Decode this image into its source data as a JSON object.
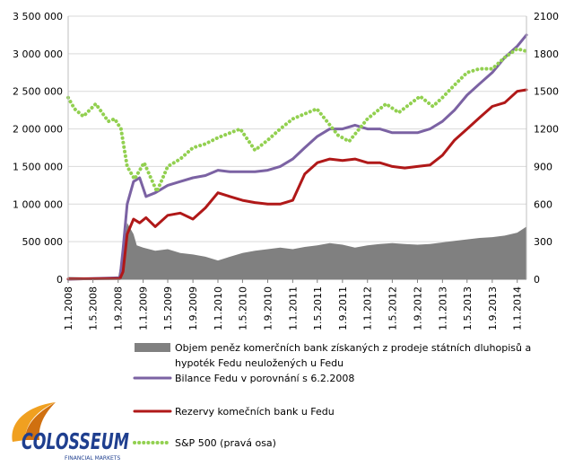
{
  "chart_data": {
    "type": "line",
    "title": "",
    "left_axis": {
      "ylim": [
        0,
        3500000
      ],
      "ticks": [
        0,
        500000,
        1000000,
        1500000,
        2000000,
        2500000,
        3000000,
        3500000
      ],
      "tick_labels": [
        "0",
        "500 000",
        "1 000 000",
        "1 500 000",
        "2 000 000",
        "2 500 000",
        "3 000 000",
        "3 500 000"
      ]
    },
    "right_axis": {
      "ylim": [
        0,
        2100
      ],
      "ticks": [
        0,
        300,
        600,
        900,
        1200,
        1500,
        1800,
        2100
      ],
      "tick_labels": [
        "0",
        "300",
        "600",
        "900",
        "1200",
        "1500",
        "1800",
        "2100"
      ]
    },
    "x_axis": {
      "range": [
        "2008-01-01",
        "2014-02-15"
      ],
      "tick_dates": [
        "2008-01-01",
        "2008-05-01",
        "2008-09-01",
        "2009-01-01",
        "2009-05-01",
        "2009-09-01",
        "2010-01-01",
        "2010-05-01",
        "2010-09-01",
        "2011-01-01",
        "2011-05-01",
        "2011-09-01",
        "2012-01-01",
        "2012-05-01",
        "2012-09-01",
        "2013-01-01",
        "2013-05-01",
        "2013-09-01",
        "2014-01-01"
      ],
      "tick_labels": [
        "1.1.2008",
        "1.5.2008",
        "1.9.2008",
        "1.1.2009",
        "1.5.2009",
        "1.9.2009",
        "1.1.2010",
        "1.5.2010",
        "1.9.2010",
        "1.1.2011",
        "1.5.2011",
        "1.9.2011",
        "1.1.2012",
        "1.5.2012",
        "1.9.2012",
        "1.1.2013",
        "1.5.2013",
        "1.9.2013",
        "1.1.2014"
      ]
    },
    "grid": "horizontal",
    "legend_position": "bottom",
    "series": [
      {
        "name": "Objem peněz komerčních bank získaných z prodeje státních dluhopisů a hypoték Fedu neuložených u Fedu",
        "type": "area",
        "axis": "left",
        "color": "#808080",
        "x": [
          "2008-01-01",
          "2008-06-01",
          "2008-09-01",
          "2008-09-20",
          "2008-10-15",
          "2008-11-15",
          "2008-12-01",
          "2009-01-01",
          "2009-03-01",
          "2009-05-01",
          "2009-07-01",
          "2009-09-01",
          "2009-11-01",
          "2010-01-01",
          "2010-03-01",
          "2010-05-01",
          "2010-07-01",
          "2010-09-01",
          "2010-11-01",
          "2011-01-01",
          "2011-03-01",
          "2011-05-01",
          "2011-07-01",
          "2011-09-01",
          "2011-11-01",
          "2012-01-01",
          "2012-03-01",
          "2012-05-01",
          "2012-07-01",
          "2012-09-01",
          "2012-11-01",
          "2013-01-01",
          "2013-03-01",
          "2013-05-01",
          "2013-07-01",
          "2013-09-01",
          "2013-11-01",
          "2014-01-01",
          "2014-02-15"
        ],
        "y": [
          30000,
          20000,
          20000,
          300000,
          750000,
          600000,
          450000,
          420000,
          380000,
          400000,
          350000,
          330000,
          300000,
          250000,
          300000,
          350000,
          380000,
          400000,
          420000,
          400000,
          430000,
          450000,
          480000,
          460000,
          420000,
          450000,
          470000,
          480000,
          470000,
          460000,
          470000,
          490000,
          510000,
          530000,
          550000,
          560000,
          580000,
          620000,
          700000
        ]
      },
      {
        "name": "Bilance Fedu v porovnání s 6.2.2008",
        "type": "line",
        "axis": "left",
        "color": "#7b62a3",
        "x": [
          "2008-01-01",
          "2008-09-10",
          "2008-09-25",
          "2008-10-15",
          "2008-11-15",
          "2008-12-15",
          "2009-01-15",
          "2009-03-01",
          "2009-05-01",
          "2009-07-01",
          "2009-09-01",
          "2009-11-01",
          "2010-01-01",
          "2010-03-01",
          "2010-05-01",
          "2010-07-01",
          "2010-09-01",
          "2010-11-01",
          "2011-01-01",
          "2011-03-01",
          "2011-05-01",
          "2011-07-01",
          "2011-09-01",
          "2011-11-01",
          "2012-01-01",
          "2012-03-01",
          "2012-05-01",
          "2012-07-01",
          "2012-09-01",
          "2012-11-01",
          "2013-01-01",
          "2013-03-01",
          "2013-05-01",
          "2013-07-01",
          "2013-09-01",
          "2013-11-01",
          "2014-01-01",
          "2014-02-15"
        ],
        "y": [
          0,
          20000,
          400000,
          1000000,
          1300000,
          1350000,
          1100000,
          1150000,
          1250000,
          1300000,
          1350000,
          1380000,
          1450000,
          1430000,
          1430000,
          1430000,
          1450000,
          1500000,
          1600000,
          1750000,
          1900000,
          2000000,
          2000000,
          2050000,
          2000000,
          2000000,
          1950000,
          1950000,
          1950000,
          2000000,
          2100000,
          2250000,
          2450000,
          2600000,
          2750000,
          2950000,
          3100000,
          3250000
        ]
      },
      {
        "name": "Rezervy komečních bank u Fedu",
        "type": "line",
        "axis": "left",
        "color": "#b01818",
        "x": [
          "2008-01-01",
          "2008-09-10",
          "2008-09-25",
          "2008-10-15",
          "2008-11-15",
          "2008-12-15",
          "2009-01-15",
          "2009-03-01",
          "2009-05-01",
          "2009-07-01",
          "2009-09-01",
          "2009-11-01",
          "2010-01-01",
          "2010-03-01",
          "2010-05-01",
          "2010-07-01",
          "2010-09-01",
          "2010-11-01",
          "2011-01-01",
          "2011-03-01",
          "2011-05-01",
          "2011-07-01",
          "2011-09-01",
          "2011-11-01",
          "2012-01-01",
          "2012-03-01",
          "2012-05-01",
          "2012-07-01",
          "2012-09-01",
          "2012-11-01",
          "2013-01-01",
          "2013-03-01",
          "2013-05-01",
          "2013-07-01",
          "2013-09-01",
          "2013-11-01",
          "2014-01-01",
          "2014-02-15"
        ],
        "y": [
          5000,
          10000,
          100000,
          600000,
          800000,
          750000,
          820000,
          700000,
          850000,
          880000,
          800000,
          950000,
          1150000,
          1100000,
          1050000,
          1020000,
          1000000,
          1000000,
          1050000,
          1400000,
          1550000,
          1600000,
          1580000,
          1600000,
          1550000,
          1550000,
          1500000,
          1480000,
          1500000,
          1520000,
          1650000,
          1850000,
          2000000,
          2150000,
          2300000,
          2350000,
          2500000,
          2520000
        ]
      },
      {
        "name": "S&P 500 (pravá osa)",
        "type": "line",
        "axis": "right",
        "color": "#92d050",
        "dash": "dotted",
        "x": [
          "2008-01-01",
          "2008-02-01",
          "2008-03-15",
          "2008-05-15",
          "2008-07-15",
          "2008-08-15",
          "2008-09-15",
          "2008-10-15",
          "2008-11-20",
          "2009-01-06",
          "2009-03-09",
          "2009-05-01",
          "2009-07-01",
          "2009-09-01",
          "2009-11-01",
          "2010-01-01",
          "2010-04-20",
          "2010-07-01",
          "2010-09-01",
          "2010-11-01",
          "2011-01-01",
          "2011-04-29",
          "2011-08-10",
          "2011-10-03",
          "2012-01-01",
          "2012-04-01",
          "2012-06-01",
          "2012-09-14",
          "2012-11-15",
          "2013-01-01",
          "2013-03-01",
          "2013-05-01",
          "2013-07-01",
          "2013-09-01",
          "2013-11-01",
          "2014-01-01",
          "2014-02-15"
        ],
        "y": [
          1450,
          1360,
          1300,
          1400,
          1260,
          1280,
          1200,
          900,
          800,
          930,
          700,
          900,
          960,
          1050,
          1080,
          1130,
          1200,
          1030,
          1110,
          1200,
          1280,
          1360,
          1150,
          1100,
          1280,
          1400,
          1330,
          1460,
          1380,
          1450,
          1550,
          1650,
          1680,
          1680,
          1770,
          1840,
          1820
        ]
      }
    ]
  },
  "logo": {
    "name": "COLOSSEUM",
    "tagline": "FINANCIAL MARKETS",
    "colors": [
      "#f0a020",
      "#1f3f8f"
    ]
  }
}
